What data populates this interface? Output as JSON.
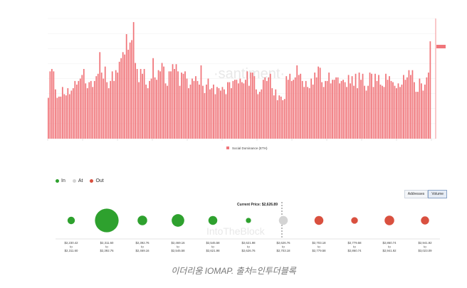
{
  "chart_data": [
    {
      "type": "bar",
      "series": [
        {
          "name": "Social Dominance (ETH)",
          "color": "#f0757a",
          "values": [
            34,
            56,
            58,
            56,
            41,
            34,
            35,
            35,
            43,
            37,
            36,
            42,
            37,
            40,
            42,
            48,
            45,
            48,
            50,
            53,
            58,
            46,
            42,
            47,
            48,
            43,
            48,
            52,
            54,
            72,
            55,
            50,
            60,
            47,
            42,
            48,
            56,
            48,
            57,
            55,
            64,
            67,
            72,
            70,
            87,
            74,
            80,
            82,
            97,
            63,
            58,
            47,
            58,
            54,
            58,
            45,
            42,
            48,
            50,
            67,
            51,
            49,
            57,
            56,
            63,
            60,
            46,
            44,
            56,
            56,
            62,
            58,
            62,
            56,
            44,
            55,
            54,
            56,
            50,
            42,
            45,
            50,
            48,
            52,
            48,
            45,
            61,
            44,
            38,
            45,
            50,
            41,
            42,
            45,
            37,
            43,
            42,
            40,
            43,
            41,
            37,
            47,
            47,
            42,
            48,
            49,
            49,
            46,
            50,
            47,
            46,
            49,
            56,
            44,
            55,
            55,
            52,
            41,
            37,
            39,
            41,
            49,
            51,
            48,
            51,
            54,
            42,
            36,
            41,
            32,
            36,
            35,
            32,
            33,
            52,
            49,
            54,
            48,
            49,
            51,
            61,
            53,
            54,
            48,
            43,
            48,
            43,
            42,
            50,
            45,
            55,
            51,
            60,
            59,
            47,
            43,
            48,
            48,
            55,
            46,
            49,
            49,
            51,
            51,
            46,
            48,
            49,
            47,
            43,
            53,
            46,
            52,
            44,
            54,
            42,
            55,
            49,
            54,
            44,
            40,
            44,
            55,
            54,
            43,
            54,
            48,
            53,
            45,
            44,
            43,
            54,
            49,
            52,
            48,
            47,
            44,
            42,
            46,
            43,
            45,
            53,
            49,
            51,
            57,
            53,
            57,
            47,
            39,
            39,
            50,
            46,
            40,
            45,
            51,
            55,
            81
          ]
        }
      ],
      "legend": "bottom-center",
      "grid": true
    },
    {
      "type": "scatter",
      "title": "",
      "legend": {
        "items": [
          {
            "label": "In",
            "color": "#2ea12e"
          },
          {
            "label": "At",
            "color": "#d4d4d4"
          },
          {
            "label": "Out",
            "color": "#d9503f"
          }
        ]
      },
      "current_price_label": "Current Price: $2,626.89",
      "toggle": {
        "addresses": "Addresses",
        "volume": "Volume",
        "active": "Volume"
      },
      "ranges": [
        {
          "from": "$2,230.42",
          "to_word": "to",
          "to": "$2,311.60",
          "status": "in",
          "weight": 1.0
        },
        {
          "from": "$2,311.60",
          "to_word": "to",
          "to": "$2,392.76",
          "status": "in",
          "weight": 3.2
        },
        {
          "from": "$2,392.76",
          "to_word": "to",
          "to": "$2,469.16",
          "status": "in",
          "weight": 1.3
        },
        {
          "from": "$2,469.16",
          "to_word": "to",
          "to": "$2,545.58",
          "status": "in",
          "weight": 1.7
        },
        {
          "from": "$2,545.58",
          "to_word": "to",
          "to": "$2,621.98",
          "status": "in",
          "weight": 1.2
        },
        {
          "from": "$2,621.98",
          "to_word": "to",
          "to": "$2,626.76",
          "status": "in",
          "weight": 0.7
        },
        {
          "from": "$2,626.76",
          "to_word": "to",
          "to": "$2,703.18",
          "status": "at",
          "weight": 1.2
        },
        {
          "from": "$2,703.18",
          "to_word": "to",
          "to": "$2,779.58",
          "status": "out",
          "weight": 1.2
        },
        {
          "from": "$2,779.58",
          "to_word": "to",
          "to": "$2,860.74",
          "status": "out",
          "weight": 0.9
        },
        {
          "from": "$2,860.74",
          "to_word": "to",
          "to": "$2,941.92",
          "status": "out",
          "weight": 1.3
        },
        {
          "from": "$2,941.92",
          "to_word": "to",
          "to": "$3,023.09",
          "status": "out",
          "weight": 1.1
        }
      ]
    }
  ],
  "caption": "이더리움 IOMAP. 출처=인투더블록",
  "colors": {
    "in": "#2ea12e",
    "at": "#d4d4d4",
    "out": "#d9503f",
    "bar": "#f0757a",
    "axis": "#f0757a"
  }
}
